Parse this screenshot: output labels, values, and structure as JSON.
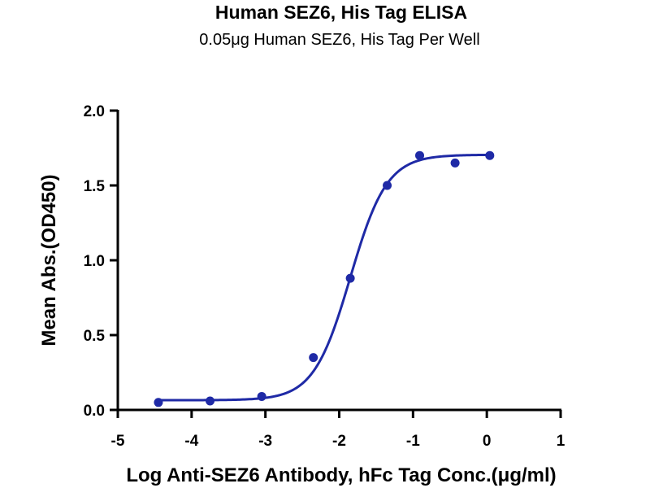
{
  "chart_data": {
    "type": "scatter",
    "title": "Human SEZ6, His Tag ELISA",
    "subtitle": "0.05μg Human SEZ6, His Tag Per Well",
    "xlabel": "Log Anti-SEZ6 Antibody, hFc Tag Conc.(μg/ml)",
    "ylabel": "Mean Abs.(OD450)",
    "xlim": [
      -5,
      1
    ],
    "ylim": [
      0,
      2.0
    ],
    "xticks": [
      "-5",
      "-4",
      "-3",
      "-2",
      "-1",
      "0",
      "1"
    ],
    "yticks": [
      "0.0",
      "0.5",
      "1.0",
      "1.5",
      "2.0"
    ],
    "grid": false,
    "legend": "none",
    "colors": {
      "series": "#1f2aa6"
    },
    "series": [
      {
        "x": [
          -4.45,
          -3.75,
          -3.05,
          -2.35,
          -1.85,
          -1.35,
          -0.91,
          -0.43,
          0.04
        ],
        "y": [
          0.05,
          0.06,
          0.09,
          0.35,
          0.88,
          1.5,
          1.7,
          1.65,
          1.7
        ],
        "fit_curve": {
          "model": "4PL",
          "bottom": 0.065,
          "top": 1.705,
          "log_ec50": -1.85,
          "hill_slope": 1.75
        }
      }
    ]
  }
}
